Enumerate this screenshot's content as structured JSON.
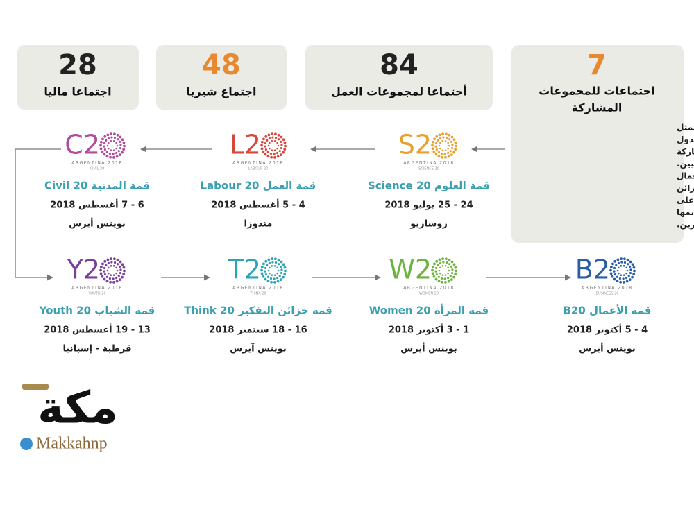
{
  "stats": [
    {
      "number": "28",
      "label": "اجتماعا ماليا",
      "color": "#222222"
    },
    {
      "number": "48",
      "label": "اجتماع شيربا",
      "color": "#e8892f"
    },
    {
      "number": "84",
      "label": "أجتماعا لمجموعات العمل",
      "color": "#222222"
    },
    {
      "number": "7",
      "label": [
        "اجتماعات للمجموعات",
        "المشاركة"
      ],
      "color": "#e8892f"
    }
  ],
  "description": [
    "والمجموعات منظمات مدنية تمثل",
    "قطاعات مختلفة من مجتمع الدول",
    "الأعضاء، تعد كل مجموعة مشاركة",
    "مستقلة ويرأسها أحد أعضائها الوطنيين.",
    "توجد سبع مجموعات، وهي الأعمال",
    "والعلوم والمدنية والشباب والعمل وخزائن",
    "التفكير والمرأة. وتعمل اجتماعاتهم على",
    "تطوير مجموعة من التوصيات وتقديمها",
    "إلى مجموعة العشرين."
  ],
  "groups": [
    {
      "logo": "C2",
      "country": "ARGENTINA 2018",
      "sub": "CIVIL 20",
      "color": "#b34a9e",
      "title": "قمة المدنية Civil 20",
      "date": "6 - 7 أغسطس 2018",
      "city": "بوينس أيرس"
    },
    {
      "logo": "L2",
      "country": "ARGENTINA 2018",
      "sub": "LABOUR 20",
      "color": "#d9463c",
      "title": "قمة العمل Labour 20",
      "date": "4 - 5 أغسطس 2018",
      "city": "مندوزا"
    },
    {
      "logo": "S2",
      "country": "ARGENTINA 2018",
      "sub": "SCIENCE 20",
      "color": "#e8a030",
      "title": "قمة العلوم Science 20",
      "date": "24 - 25 يوليو 2018",
      "city": "روساريو"
    },
    {
      "logo": "Y2",
      "country": "ARGENTINA 2018",
      "sub": "YOUTH 20",
      "color": "#7a3f9a",
      "title": "قمة الشباب Youth 20",
      "date": "13 - 19 أغسطس 2018",
      "city": "قرطبة - إسبانيا"
    },
    {
      "logo": "T2",
      "country": "ARGENTINA 2018",
      "sub": "THINK 20",
      "color": "#2aa5b5",
      "title": "قمة خزائن التفكير Think 20",
      "date": "16 - 18 سبتمبر 2018",
      "city": "بوينس آيرس"
    },
    {
      "logo": "W2",
      "country": "ARGENTINA 2018",
      "sub": "WOMEN 20",
      "color": "#6db33f",
      "title": "قمة المرأة Women 20",
      "date": "1 - 3 أكتوبر 2018",
      "city": "بوينس أيرس"
    },
    {
      "logo": "B2",
      "country": "ARGENTINA 2018",
      "sub": "BUSINESS 20",
      "color": "#2a5ea8",
      "title": "قمة الأعمال B20",
      "date": "4 - 5 أكتوبر 2018",
      "city": "بوينس أيرس"
    }
  ],
  "brand": {
    "logo": "مكة",
    "handle": "Makkahnp"
  }
}
